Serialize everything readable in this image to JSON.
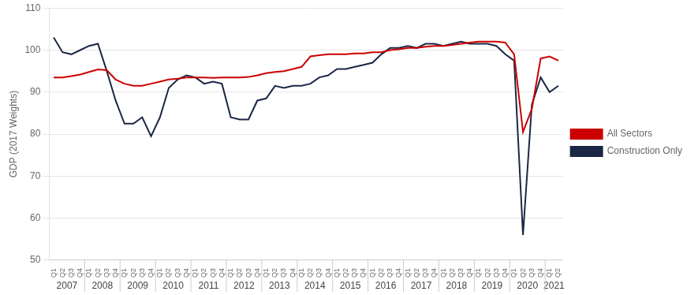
{
  "chart_data": {
    "type": "line",
    "y_label": "GDP (2017 Weights)",
    "categories": [
      "Q1",
      "Q2",
      "Q3",
      "Q4",
      "Q1",
      "Q2",
      "Q3",
      "Q4",
      "Q1",
      "Q2",
      "Q3",
      "Q4",
      "Q1",
      "Q2",
      "Q3",
      "Q4",
      "Q1",
      "Q2",
      "Q3",
      "Q4",
      "Q1",
      "Q2",
      "Q3",
      "Q4",
      "Q1",
      "Q2",
      "Q3",
      "Q4",
      "Q1",
      "Q2",
      "Q3",
      "Q4",
      "Q1",
      "Q2",
      "Q3",
      "Q4",
      "Q1",
      "Q2",
      "Q3",
      "Q4",
      "Q1",
      "Q2",
      "Q3",
      "Q4",
      "Q1",
      "Q2",
      "Q3",
      "Q4",
      "Q1",
      "Q2",
      "Q3",
      "Q4",
      "Q1",
      "Q2",
      "Q3",
      "Q4",
      "Q1",
      "Q2"
    ],
    "category_groups": [
      "2007",
      "2008",
      "2009",
      "2010",
      "2011",
      "2012",
      "2013",
      "2014",
      "2015",
      "2016",
      "2017",
      "2018",
      "2019",
      "2020",
      "2021"
    ],
    "series": [
      {
        "name": "All Sectors",
        "color": "#cc0000",
        "values": [
          93.5,
          93.5,
          93.8,
          94.2,
          94.8,
          95.4,
          95.2,
          93.0,
          92.0,
          91.5,
          91.5,
          92.0,
          92.5,
          93.0,
          93.2,
          93.5,
          93.5,
          93.5,
          93.4,
          93.5,
          93.5,
          93.5,
          93.6,
          94.0,
          94.5,
          94.8,
          95.0,
          95.5,
          96.0,
          98.5,
          98.8,
          99.0,
          99.0,
          99.0,
          99.2,
          99.2,
          99.5,
          99.5,
          100.0,
          100.2,
          100.5,
          100.5,
          100.8,
          101.0,
          101.0,
          101.2,
          101.5,
          101.8,
          102.0,
          102.0,
          102.0,
          101.8,
          99.0,
          80.5,
          86.0,
          98.0,
          98.5,
          97.5
        ]
      },
      {
        "name": "Construction Only",
        "color": "#1a2744",
        "values": [
          103.0,
          99.5,
          99.0,
          100.0,
          101.0,
          101.5,
          95.0,
          88.0,
          82.5,
          82.5,
          84.0,
          79.5,
          84.0,
          91.0,
          93.0,
          94.0,
          93.5,
          92.0,
          92.5,
          92.0,
          84.0,
          83.5,
          83.5,
          88.0,
          88.5,
          91.5,
          91.0,
          91.5,
          91.5,
          92.0,
          93.5,
          94.0,
          95.5,
          95.5,
          96.0,
          96.5,
          97.0,
          99.0,
          100.5,
          100.5,
          101.0,
          100.5,
          101.5,
          101.5,
          101.0,
          101.5,
          102.0,
          101.5,
          101.5,
          101.5,
          101.0,
          99.0,
          97.5,
          56.0,
          87.0,
          93.5,
          90.0,
          91.5
        ]
      }
    ],
    "ylim": [
      50,
      110
    ],
    "yticks": [
      50,
      60,
      70,
      80,
      90,
      100,
      110
    ],
    "grid": true,
    "legend": "right",
    "marker": "none"
  }
}
